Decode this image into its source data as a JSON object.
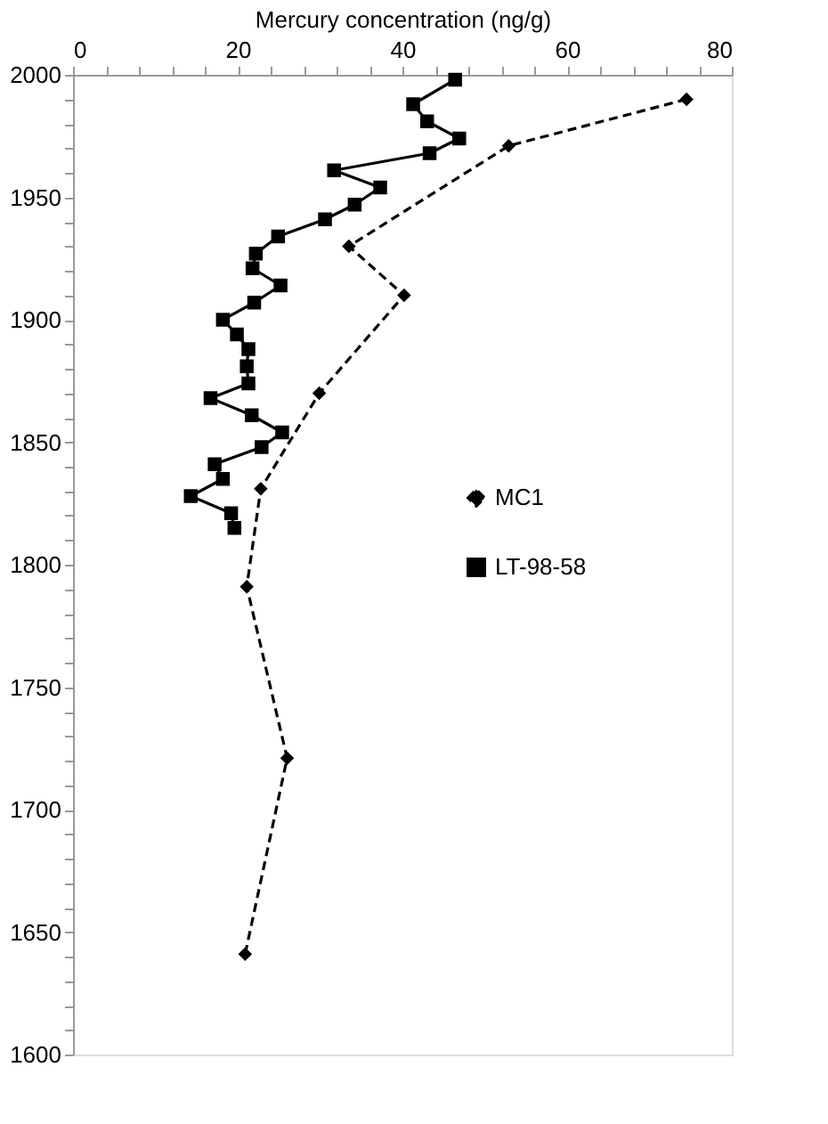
{
  "chart_data": {
    "type": "line",
    "xlabel": "Mercury concentration (ng/g)",
    "xlim": [
      0,
      80
    ],
    "xticks": [
      0,
      {
        "value": 4,
        "label": null
      },
      {
        "value": 8,
        "label": null
      },
      {
        "value": 12,
        "label": null
      },
      {
        "value": 16,
        "label": null
      },
      20,
      {
        "value": 24,
        "label": null
      },
      {
        "value": 28,
        "label": null
      },
      {
        "value": 32,
        "label": null
      },
      {
        "value": 36,
        "label": null
      },
      40,
      {
        "value": 44,
        "label": null
      },
      {
        "value": 48,
        "label": null
      },
      {
        "value": 52,
        "label": null
      },
      {
        "value": 56,
        "label": null
      },
      60,
      {
        "value": 64,
        "label": null
      },
      {
        "value": 68,
        "label": null
      },
      {
        "value": 72,
        "label": null
      },
      {
        "value": 76,
        "label": null
      },
      80
    ],
    "ylim": [
      1600,
      2000
    ],
    "yticks": [
      1600,
      {
        "value": 1610,
        "label": null
      },
      {
        "value": 1620,
        "label": null
      },
      {
        "value": 1630,
        "label": null
      },
      {
        "value": 1640,
        "label": null
      },
      1650,
      {
        "value": 1660,
        "label": null
      },
      {
        "value": 1670,
        "label": null
      },
      {
        "value": 1680,
        "label": null
      },
      {
        "value": 1690,
        "label": null
      },
      1700,
      {
        "value": 1710,
        "label": null
      },
      {
        "value": 1720,
        "label": null
      },
      {
        "value": 1730,
        "label": null
      },
      {
        "value": 1740,
        "label": null
      },
      1750,
      {
        "value": 1760,
        "label": null
      },
      {
        "value": 1770,
        "label": null
      },
      {
        "value": 1780,
        "label": null
      },
      {
        "value": 1790,
        "label": null
      },
      1800,
      {
        "value": 1810,
        "label": null
      },
      {
        "value": 1820,
        "label": null
      },
      {
        "value": 1830,
        "label": null
      },
      {
        "value": 1840,
        "label": null
      },
      1850,
      {
        "value": 1860,
        "label": null
      },
      {
        "value": 1870,
        "label": null
      },
      {
        "value": 1880,
        "label": null
      },
      {
        "value": 1890,
        "label": null
      },
      1900,
      {
        "value": 1910,
        "label": null
      },
      {
        "value": 1920,
        "label": null
      },
      {
        "value": 1930,
        "label": null
      },
      {
        "value": 1940,
        "label": null
      },
      1950,
      {
        "value": 1960,
        "label": null
      },
      {
        "value": 1970,
        "label": null
      },
      {
        "value": 1980,
        "label": null
      },
      {
        "value": 1990,
        "label": null
      },
      2000
    ],
    "grid": false,
    "legend": "right",
    "series": [
      {
        "name": "MC1",
        "color": "#000000",
        "marker": "diamond",
        "line_style": "dashed",
        "x": [
          74.5,
          52.9,
          33.5,
          40.2,
          29.9,
          22.8,
          21.1,
          26.0,
          20.9
        ],
        "values": [
          1990,
          1971,
          1930,
          1910,
          1870,
          1831,
          1791,
          1721,
          1641
        ]
      },
      {
        "name": "LT-98-58",
        "color": "#000000",
        "marker": "square",
        "line_style": "solid",
        "x": [
          46.4,
          41.3,
          43.0,
          46.9,
          43.3,
          31.7,
          37.3,
          34.2,
          30.6,
          24.9,
          22.2,
          21.8,
          25.2,
          22.0,
          18.2,
          19.9,
          21.3,
          21.1,
          21.3,
          16.7,
          21.7,
          25.4,
          22.9,
          17.2,
          18.2,
          14.3,
          19.2,
          19.6
        ],
        "values": [
          1998,
          1988,
          1981,
          1974,
          1968,
          1961,
          1954,
          1947,
          1941,
          1934,
          1927,
          1921,
          1914,
          1907,
          1900,
          1894,
          1888,
          1881,
          1874,
          1868,
          1861,
          1854,
          1848,
          1841,
          1835,
          1828,
          1821,
          1815
        ]
      }
    ]
  }
}
